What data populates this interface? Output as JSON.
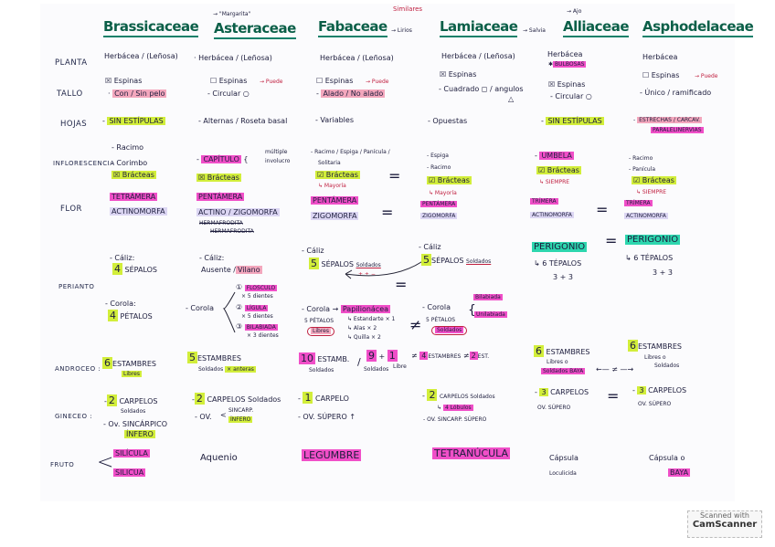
{
  "columns": [
    {
      "title": "Brassicaceae"
    },
    {
      "title": "Asteraceae",
      "note": "→ \"Margarita\""
    },
    {
      "title": "Fabaceae",
      "note": "→ Lirios",
      "similar": "Similares"
    },
    {
      "title": "Lamiaceae",
      "note": "→ Salvia"
    },
    {
      "title": "Alliaceae",
      "note": "→ Ajo"
    },
    {
      "title": "Asphodelaceae"
    }
  ],
  "rows": [
    "PLANTA",
    "TALLO",
    "HOJAS",
    "INFLORESCENCIA",
    "FLOR",
    "PERIANTO",
    "ANDROCEO :",
    "GINECEO :",
    "FRUTO"
  ],
  "cells": {
    "bra": {
      "planta": "Herbácea / (Leñosa)",
      "espinas": "☒ Espinas",
      "tallo": "Con / Sin pelo",
      "hojas": "SIN ESTÍPULAS",
      "inf1": "- Racimo",
      "inf2": "- Corimbo",
      "bract": "☒ Brácteas",
      "flor1": "TETRÁMERA",
      "flor2": "ACTINOMORFA",
      "caliz": "- Cáliz:",
      "caliz_n": "4",
      "caliz_t": "SÉPALOS",
      "corola": "- Corola:",
      "corola_n": "4",
      "corola_t": "PÉTALOS",
      "and_n": "6",
      "and_t": "ESTAMBRES",
      "and_s": "Libres",
      "gin_n": "2",
      "gin_t": "CARPELOS",
      "gin_s": "Soldados",
      "gin2": "- Ov. SINCÁRPICO",
      "gin3": "ÍNFERO",
      "fruto1": "SILÍCULA",
      "fruto2": "SILICUA"
    },
    "ast": {
      "planta": "Herbácea / (Leñosa)",
      "espinas": "☐ Espinas",
      "puede": "→ Puede",
      "tallo": "- Circular ○",
      "hojas": "- Alternas / Roseta basal",
      "inf": "CAPÍTULO",
      "inf_a": "múltiple",
      "inf_b": "involucro",
      "bract": "☒ Brácteas",
      "flor1": "PENTÁMERA",
      "flor2": "ACTINO / ZIGOMORFA",
      "flor3": "HERMAFRODITA",
      "flor4": "HERMAFRODITA",
      "caliz": "- Cáliz:",
      "caliz_t": "Ausente /",
      "caliz_h": "Vilano",
      "corola": "- Corola",
      "c1": "FLOSCULO",
      "c1s": "× 5 dientes",
      "c2": "LÍGULA",
      "c2s": "× 5 dientes",
      "c3": "BILABIADA",
      "c3s": "× 3 dientes",
      "and_n": "5",
      "and_t": "ESTAMBRES",
      "and_s": "Soldados",
      "and_h": "× anteras",
      "gin_n": "2",
      "gin_t": "CARPELOS Soldados",
      "gin2": "- OV.",
      "gin3": "SINCARP.",
      "gin4": "ÍNFERO",
      "fruto": "Aquenio"
    },
    "fab": {
      "planta": "Herbácea / (Leñosa)",
      "espinas": "☐ Espinas",
      "puede": "→ Puede",
      "tallo": "Alado / No alado",
      "hojas": "- Variables",
      "inf1": "- Racimo / Espiga / Panícula /",
      "inf2": "Solitaria",
      "bract": "☑ Brácteas",
      "bract_s": "↳ Mayoría",
      "flor1": "PENTÁMERA",
      "flor2": "ZIGOMORFA",
      "caliz": "- Cáliz",
      "caliz_n": "5",
      "caliz_t": "SÉPALOS",
      "caliz_s": "Soldados",
      "pm": "+ ± −",
      "corola": "- Corola →",
      "corola_h": "Papilionácea",
      "corola_p": "5 PÉTALOS",
      "corola_l": "Libres",
      "p1": "↳ Estandarte × 1",
      "p2": "↳ Alas × 2",
      "p3": "↳ Quilla × 2",
      "and_n": "10",
      "and_t": "ESTAMB.",
      "and_s": "Soldados",
      "and_a": "9",
      "and_b": "1",
      "and_sa": "Soldados",
      "and_sb": "Libre",
      "gin_n": "1",
      "gin_t": "CARPELO",
      "gin2": "- OV. SÚPERO ↑",
      "fruto": "LEGUMBRE"
    },
    "lam": {
      "planta": "Herbácea / (Leñosa)",
      "espinas": "☒ Espinas",
      "tallo": "- Cuadrado ◻ / angulos",
      "tri": "△",
      "hojas": "- Opuestas",
      "inf1": "- Espiga",
      "inf2": "- Racimo",
      "bract": "☑ Brácteas",
      "bract_s": "↳ Mayoría",
      "flor1": "PENTÁMERA",
      "flor2": "ZIGOMORFA",
      "caliz": "- Cáliz",
      "caliz_n": "5",
      "caliz_t": "SÉPALOS",
      "caliz_s": "Soldados",
      "corola": "- Corola",
      "corola_p": "5 PÉTALOS",
      "corola_l": "Soldados",
      "bil": "Bilabiada",
      "uni": "Unilabiada",
      "and_n": "4",
      "and_t": "ESTAMBRES",
      "and_b": "2",
      "and_bt": "EST.",
      "gin_n": "2",
      "gin_t": "CARPELOS Soldados",
      "gin_l": "↳",
      "gin_ln": "4 Lóbulos",
      "gin2": "- OV. SINCARP. SÚPERO",
      "fruto": "TETRANÚCULA"
    },
    "all": {
      "planta": "Herbácea",
      "bulb": "BULBOSAS",
      "espinas": "☒ Espinas",
      "tallo": "- Circular ○",
      "hojas": "SIN ESTÍPULAS",
      "inf": "UMBELA",
      "bract": "☑ Brácteas",
      "bract_s": "↳ SIEMPRE",
      "flor1": "TRÍMERA",
      "flor2": "ACTINOMORFA",
      "per": "PERIGONIO",
      "per_t": "↳ 6 TÉPALOS",
      "per_s": "3 + 3",
      "and_n": "6",
      "and_t": "ESTAMBRES",
      "and_s": "Libres o",
      "and_h": "Soldados BAYA",
      "gin_n": "3",
      "gin_t": "CARPELOS",
      "gin2": "OV. SÚPERO",
      "fruto1": "Cápsula",
      "fruto2": "Loculicida"
    },
    "asp": {
      "planta": "Herbácea",
      "espinas": "☐ Espinas",
      "puede": "→ Puede",
      "tallo": "- Único / ramificado",
      "hojas_a": "ESTRECHAS / CARCAV.",
      "hojas_b": "PARALELINERVIAS",
      "inf1": "- Racimo",
      "inf2": "- Panícula",
      "bract": "☑ Brácteas",
      "bract_s": "↳ SIEMPRE",
      "flor1": "TRÍMERA",
      "flor2": "ACTINOMORFA",
      "per": "PERIGONIO",
      "per_t": "↳ 6 TÉPALOS",
      "per_s": "3 + 3",
      "and_n": "6",
      "and_t": "ESTAMBRES",
      "and_s": "Libres o",
      "and_s2": "Soldados",
      "gin_n": "3",
      "gin_t": "CARPELOS",
      "gin2": "OV. SÚPERO",
      "fruto1": "Cápsula o",
      "fruto2": "BAYA"
    }
  },
  "symbols": {
    "eq": "=",
    "neq": "≠",
    "arrow_neq": "←— ≠ —→"
  },
  "watermark": {
    "line1": "Scanned with",
    "line2": "CamScanner"
  },
  "colors": {
    "title": "#0b5f48",
    "pink": "#f3a7bd",
    "magenta": "#f04fc8",
    "yellow_green": "#d2ee3a",
    "lavender": "#dcd6f3",
    "teal": "#2dd6ae"
  }
}
